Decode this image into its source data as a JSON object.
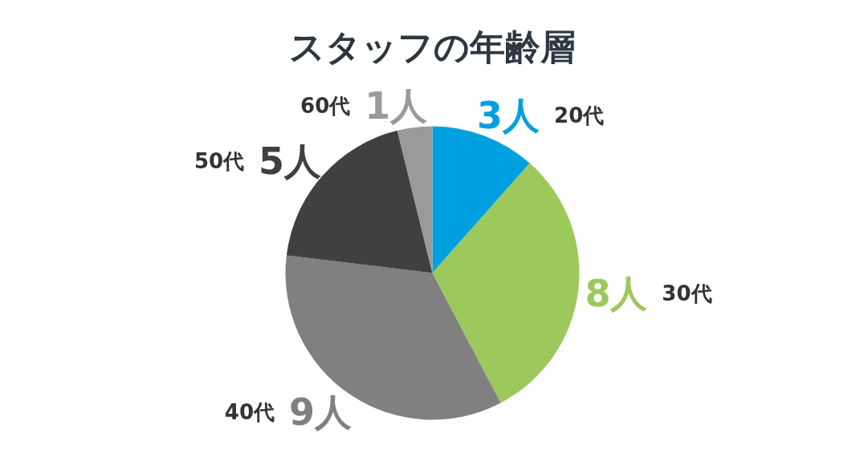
{
  "chart_data": {
    "type": "pie",
    "title": "スタッフの年齢層",
    "categories": [
      "20代",
      "30代",
      "40代",
      "50代",
      "60代"
    ],
    "values": [
      3,
      8,
      9,
      5,
      1
    ],
    "colors": [
      "#00a0e0",
      "#9dc85c",
      "#808080",
      "#404040",
      "#9a9a9a"
    ],
    "value_labels": [
      "3人",
      "8人",
      "9人",
      "5人",
      "1人"
    ],
    "legend": false
  }
}
